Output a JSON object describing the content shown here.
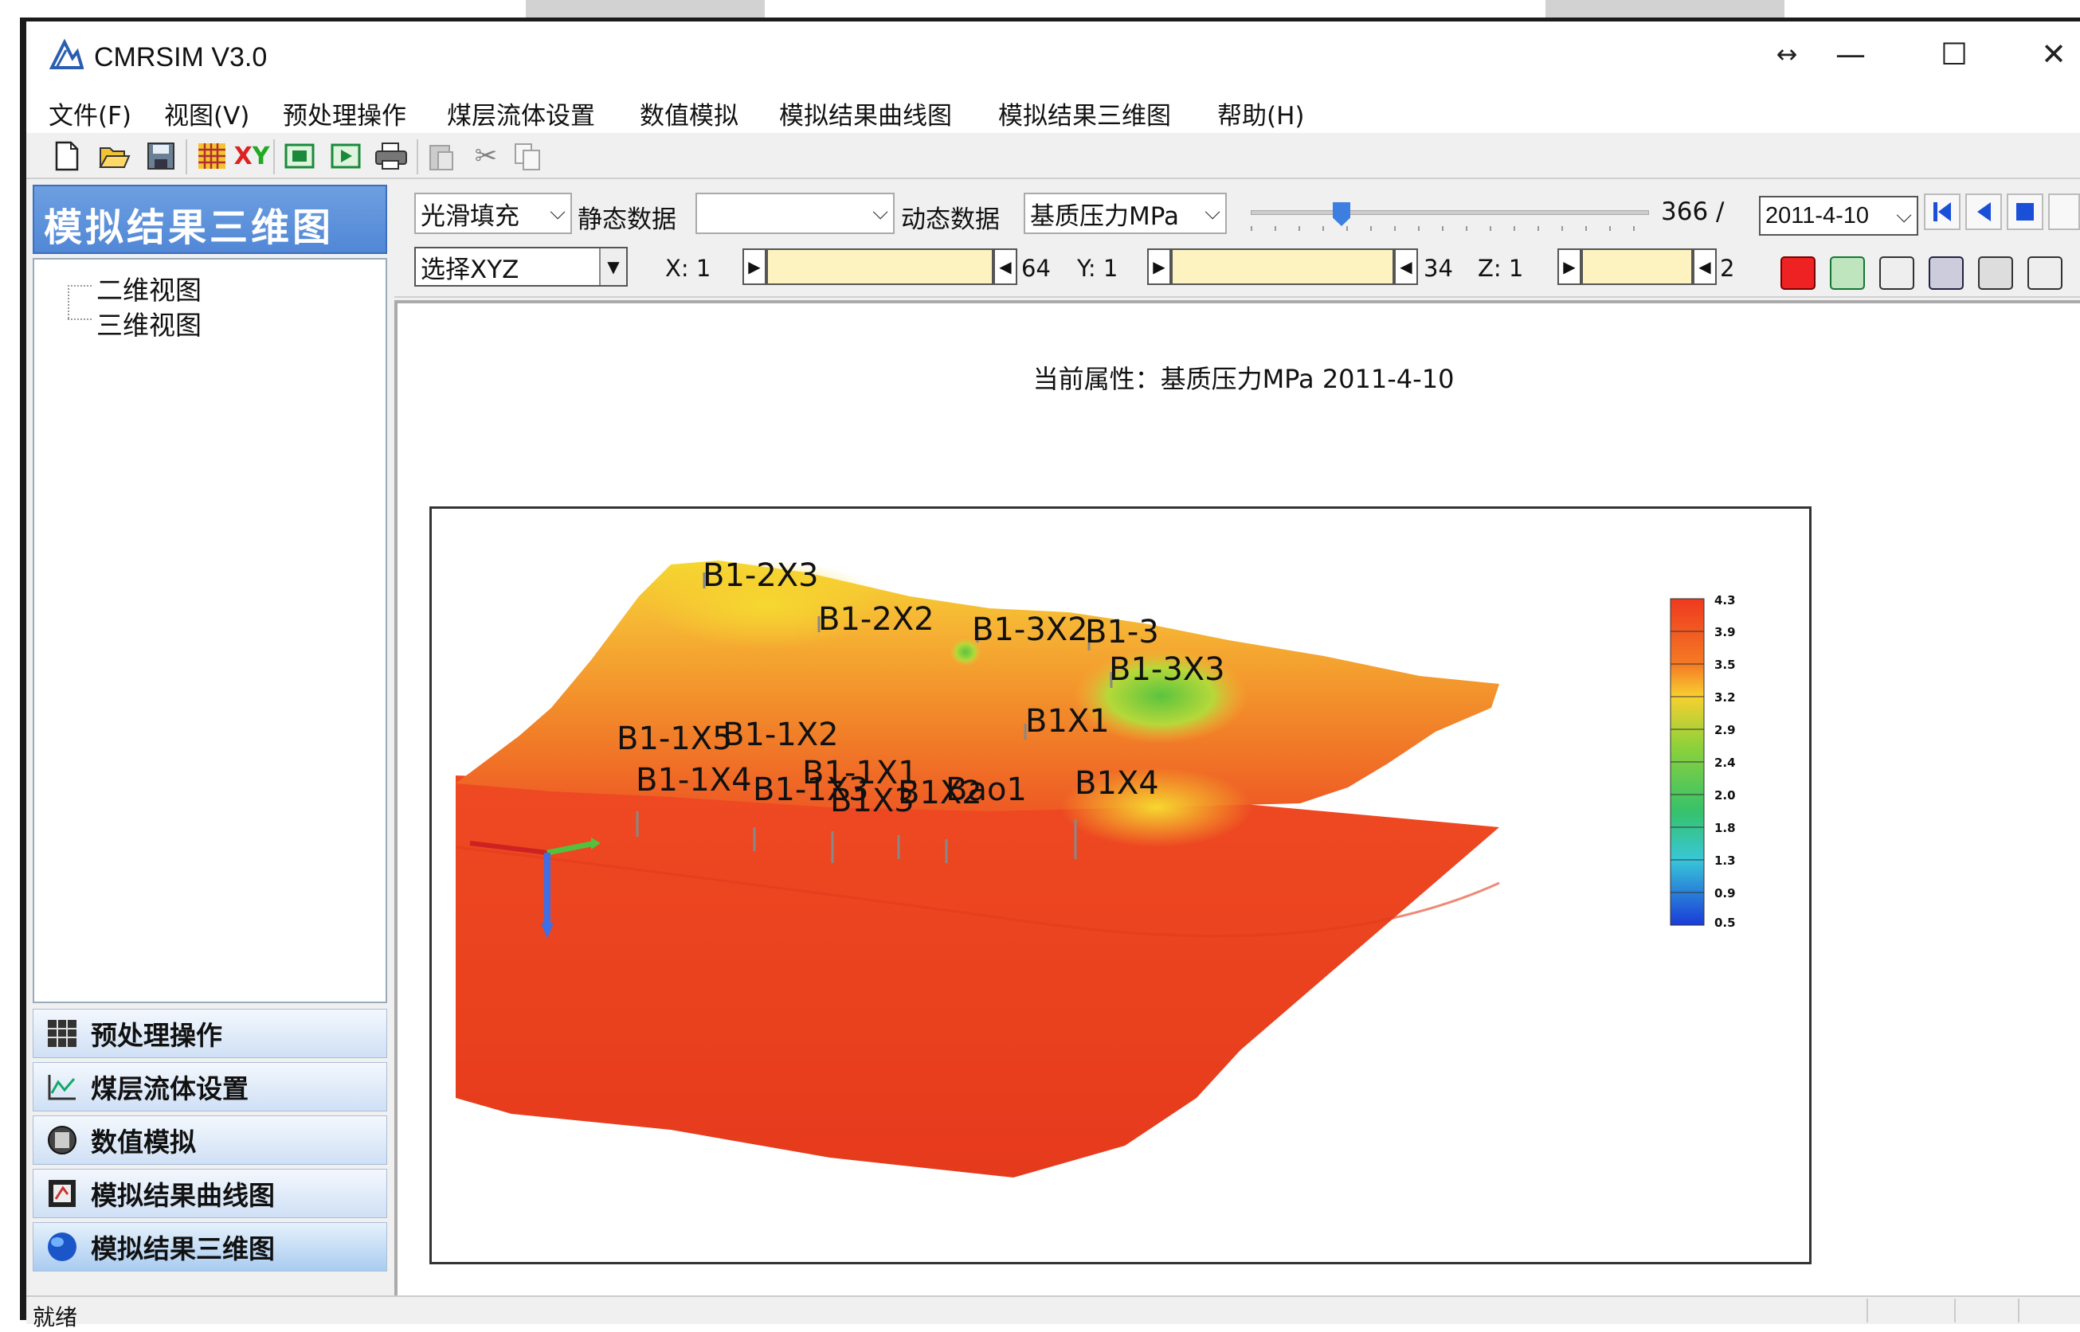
{
  "window": {
    "title": "CMRSIM V3.0",
    "buttons": {
      "resize": "↔",
      "minimize": "—",
      "maximize": "☐",
      "close": "✕"
    }
  },
  "menu": [
    "文件(F)",
    "视图(V)",
    "预处理操作",
    "煤层流体设置",
    "数值模拟",
    "模拟结果曲线图",
    "模拟结果三维图",
    "帮助(H)"
  ],
  "toolbar": {
    "icons": [
      "new-file-icon",
      "open-folder-icon",
      "save-icon",
      "grid-icon",
      "xy-icon",
      "screen-icon",
      "play-icon",
      "print-icon",
      "paste-icon",
      "cut-icon",
      "copy-icon"
    ]
  },
  "sidebar": {
    "header": "模拟结果三维图",
    "tree": [
      "二维视图",
      "三维视图"
    ],
    "nav": [
      {
        "label": "预处理操作",
        "icon": "grid-icon"
      },
      {
        "label": "煤层流体设置",
        "icon": "chart-icon"
      },
      {
        "label": "数值模拟",
        "icon": "disk-icon"
      },
      {
        "label": "模拟结果曲线图",
        "icon": "curve-icon"
      },
      {
        "label": "模拟结果三维图",
        "icon": "globe-icon"
      }
    ]
  },
  "controls": {
    "fill_mode": "光滑填充",
    "static_label": "静态数据",
    "static_value": "",
    "dynamic_label": "动态数据",
    "dynamic_value": "基质压力MPa",
    "timestep": "366 /",
    "date": "2011-4-10",
    "select_xyz": "选择XYZ",
    "x_label": "X: 1",
    "x_max": "64",
    "y_label": "Y: 1",
    "y_max": "34",
    "z_label": "Z: 1",
    "z_max": "2"
  },
  "viewport": {
    "title": "当前属性：基质压力MPa  2011-4-10",
    "wells": [
      "B1-2X3",
      "B1-2X2",
      "B1-3X2",
      "B1-3",
      "B1-3X3",
      "B1X1",
      "B1-1X5",
      "B1-1X2",
      "B1-1X4",
      "B1-1X1",
      "B1-1X3",
      "B1X3",
      "B1X2",
      "Bao1",
      "B1X4"
    ],
    "colorbar_ticks": [
      "4.3",
      "3.9",
      "3.5",
      "3.2",
      "2.9",
      "2.4",
      "2.0",
      "1.8",
      "1.3",
      "0.9",
      "0.5"
    ]
  },
  "status": "就绪"
}
